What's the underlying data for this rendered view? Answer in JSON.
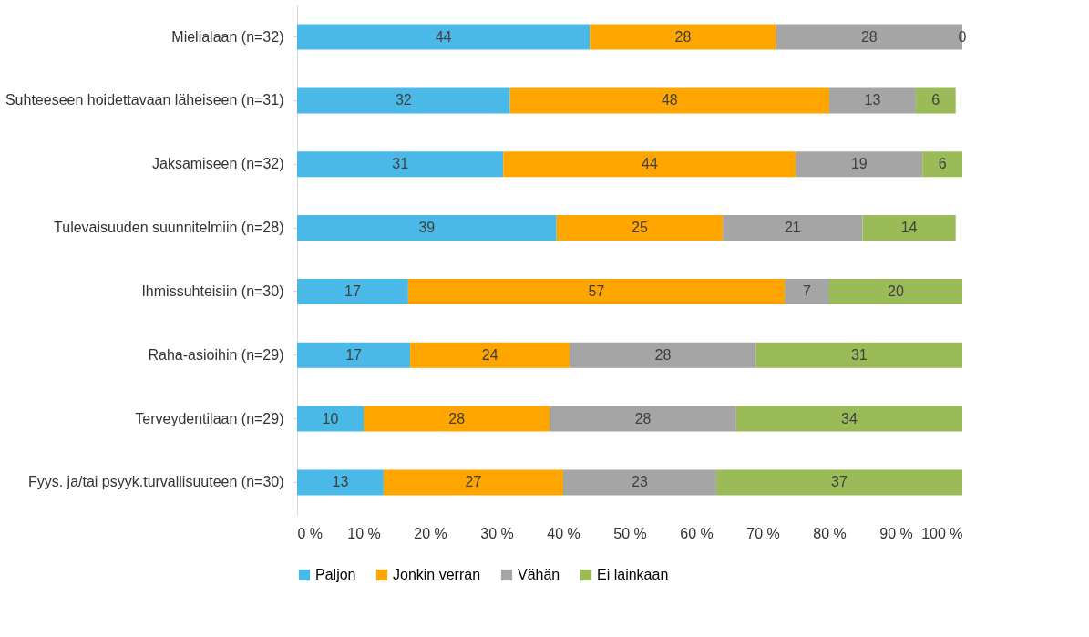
{
  "chart_data": {
    "type": "bar",
    "orientation": "horizontal",
    "stacked": true,
    "categories": [
      "Mielialaan (n=32)",
      "Suhteeseen hoidettavaan läheiseen (n=31)",
      "Jaksamiseen (n=32)",
      "Tulevaisuuden suunnitelmiin (n=28)",
      "Ihmissuhteisiin (n=30)",
      "Raha-asioihin (n=29)",
      "Terveydentilaan (n=29)",
      "Fyys. ja/tai psyyk.turvallisuuteen (n=30)"
    ],
    "series": [
      {
        "name": "Paljon",
        "color": "#4bb9e8",
        "values": [
          44,
          32,
          31,
          39,
          16.7,
          17,
          10,
          13
        ],
        "value_labels": [
          "44",
          "32",
          "31",
          "39",
          "17",
          "17",
          "10",
          "13"
        ]
      },
      {
        "name": "Jonkin verran",
        "color": "#ffa500",
        "values": [
          28,
          48,
          44,
          25,
          56.6,
          24,
          28,
          27
        ],
        "value_labels": [
          "28",
          "48",
          "44",
          "25",
          "57",
          "24",
          "28",
          "27"
        ]
      },
      {
        "name": "Vähän",
        "color": "#a5a5a5",
        "values": [
          28,
          13,
          19,
          21,
          6.7,
          28,
          28,
          23
        ],
        "value_labels": [
          "28",
          "13",
          "19",
          "21",
          "7",
          "28",
          "28",
          "23"
        ]
      },
      {
        "name": "Ei lainkaan",
        "color": "#9bbb59",
        "values": [
          0,
          6,
          6,
          14,
          20,
          31,
          34,
          37
        ],
        "value_labels": [
          "0",
          "6",
          "6",
          "14",
          "20",
          "31",
          "34",
          "37"
        ]
      }
    ],
    "xlim": [
      0,
      100
    ],
    "xticks": [
      {
        "value": 0,
        "label": "0 %"
      },
      {
        "value": 10,
        "label": "10 %"
      },
      {
        "value": 20,
        "label": "20 %"
      },
      {
        "value": 30,
        "label": "30 %"
      },
      {
        "value": 40,
        "label": "40 %"
      },
      {
        "value": 50,
        "label": "50 %"
      },
      {
        "value": 60,
        "label": "60 %"
      },
      {
        "value": 70,
        "label": "70 %"
      },
      {
        "value": 80,
        "label": "80 %"
      },
      {
        "value": 90,
        "label": "90 %"
      },
      {
        "value": 100,
        "label": "100 %"
      }
    ],
    "grid": false,
    "legend": "bottom"
  }
}
